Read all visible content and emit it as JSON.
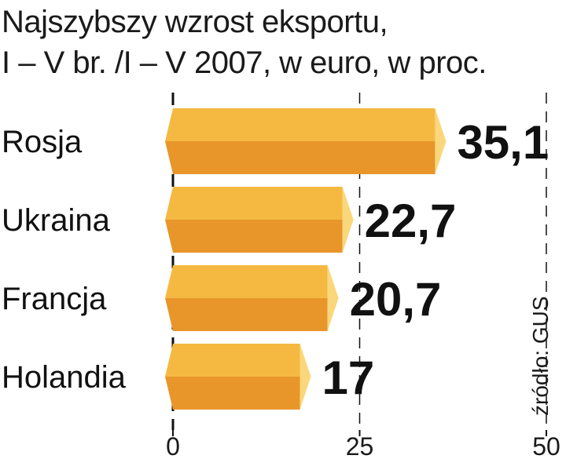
{
  "chart_data": {
    "type": "bar",
    "orientation": "horizontal",
    "title": "Najszybszy wzrost eksportu,",
    "subtitle": "I – V br. /I – V 2007, w euro, w proc.",
    "categories": [
      "Rosja",
      "Ukraina",
      "Francja",
      "Holandia"
    ],
    "values": [
      35.1,
      22.7,
      20.7,
      17
    ],
    "value_labels": [
      "35,1",
      "22,7",
      "20,7",
      "17"
    ],
    "highlight_index": 0,
    "xlim": [
      0,
      50
    ],
    "xticks": [
      0,
      25,
      50
    ],
    "xtick_labels": [
      "0",
      "25",
      "50"
    ],
    "grid": true,
    "source": "źródło: GUS"
  },
  "colors": {
    "bar_top": "#f5b942",
    "bar_bottom": "#e8962a",
    "bar_end": "#fad77a",
    "highlight_value": "#c8102e",
    "value": "#111111",
    "axis": "#111111"
  }
}
